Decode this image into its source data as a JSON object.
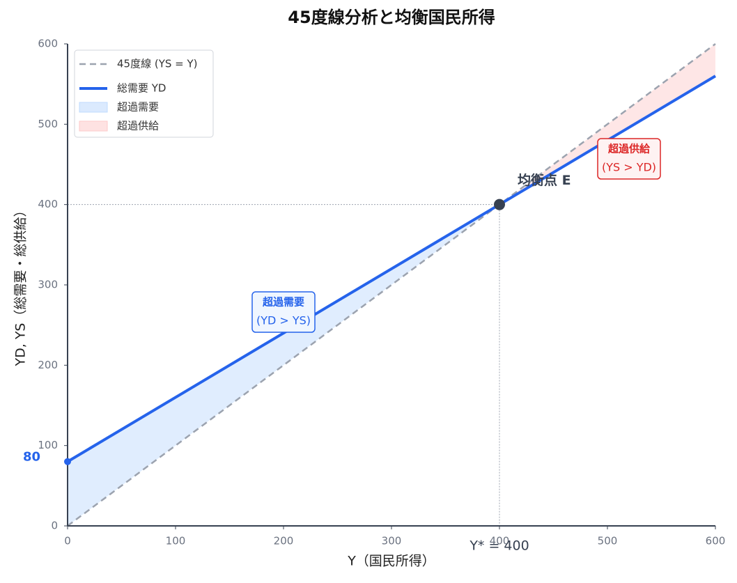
{
  "chart_data": {
    "type": "line",
    "title": "45度線分析と均衡国民所得",
    "x_label": "Y（国民所得）",
    "y_label": "YD, YS（総需要・総供給）",
    "x": [
      0,
      400,
      600
    ],
    "series": [
      {
        "name": "45度線 (YS = Y)",
        "color": "#9ca3af",
        "dash": true,
        "values": [
          0,
          400,
          600
        ]
      },
      {
        "name": "総需要 YD",
        "color": "#2563eb",
        "dash": false,
        "values": [
          80,
          400,
          560
        ]
      }
    ],
    "fills": [
      {
        "name": "超過需要",
        "color": "#dbeafe"
      },
      {
        "name": "超過供給",
        "color": "#fee2e2"
      }
    ],
    "xlim": [
      0,
      600
    ],
    "ylim": [
      0,
      600
    ],
    "xticks": [
      0,
      100,
      200,
      300,
      400,
      500,
      600
    ],
    "yticks": [
      0,
      100,
      200,
      300,
      400,
      500,
      600
    ],
    "intercept": 80,
    "equilibrium": {
      "x": 400,
      "y": 400,
      "label": "均衡点 E",
      "x_label": "Y* = 400"
    },
    "boxes": [
      {
        "lines": [
          "超過需要",
          "(YD > YS)"
        ],
        "color": "#2563eb"
      },
      {
        "lines": [
          "超過供給",
          "(YS > YD)"
        ],
        "color": "#dc2626"
      }
    ],
    "legend": "upper left"
  }
}
